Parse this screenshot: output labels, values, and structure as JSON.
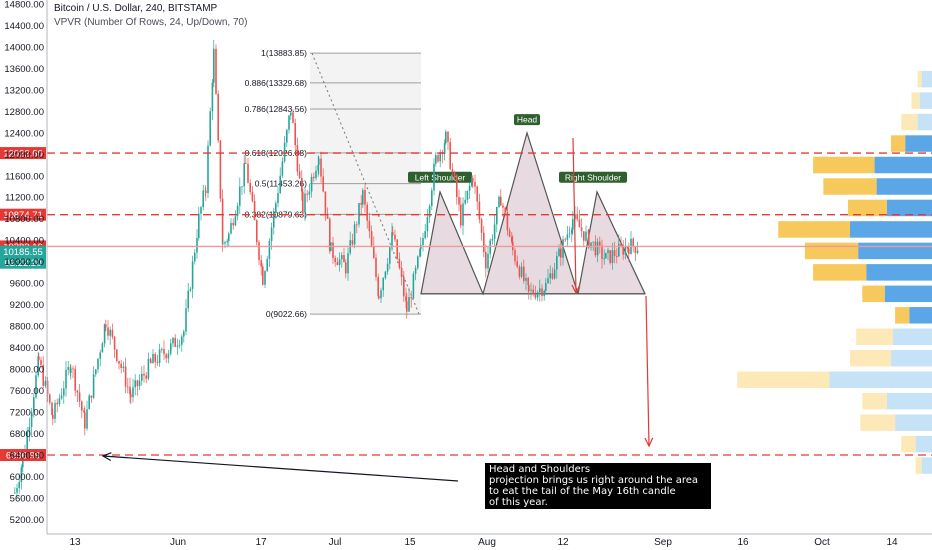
{
  "header": {
    "title": "Bitcoin / U.S. Dollar, 240, BITSTAMP",
    "subtitle": "VPVR (Number Of Rows, 24, Up/Down, 70)"
  },
  "chart_data": {
    "type": "candlestick",
    "ylim": [
      5000,
      14800
    ],
    "y_ticks": [
      "5200.00",
      "5600.00",
      "6000.00",
      "6400.00",
      "6800.00",
      "7200.00",
      "7600.00",
      "8000.00",
      "8400.00",
      "8800.00",
      "9200.00",
      "9600.00",
      "10000.00",
      "10400.00",
      "10800.00",
      "11200.00",
      "11600.00",
      "12000.00",
      "12400.00",
      "12800.00",
      "13200.00",
      "13600.00",
      "14000.00",
      "14400.00",
      "14800.00"
    ],
    "x_ticks": [
      "13",
      "Jun",
      "17",
      "Jul",
      "15",
      "Aug",
      "12",
      "Sep",
      "16",
      "Oct",
      "14"
    ],
    "price_path": [
      [
        5700,
        14
      ],
      [
        6300,
        22
      ],
      [
        8150,
        38
      ],
      [
        7100,
        52
      ],
      [
        8100,
        70
      ],
      [
        7000,
        84
      ],
      [
        8900,
        105
      ],
      [
        7500,
        130
      ],
      [
        8100,
        150
      ],
      [
        8400,
        170
      ],
      [
        8700,
        183
      ],
      [
        10800,
        198
      ],
      [
        11400,
        205
      ],
      [
        13883.85,
        213
      ],
      [
        10300,
        222
      ],
      [
        10500,
        228
      ],
      [
        11800,
        245
      ],
      [
        9700,
        262
      ],
      [
        11100,
        275
      ],
      [
        12850,
        290
      ],
      [
        11000,
        302
      ],
      [
        12000,
        318
      ],
      [
        10200,
        330
      ],
      [
        9900,
        345
      ],
      [
        11250,
        362
      ],
      [
        9400,
        378
      ],
      [
        10500,
        392
      ],
      [
        9100,
        406
      ],
      [
        10200,
        420
      ],
      [
        11900,
        435
      ],
      [
        12300,
        445
      ],
      [
        10800,
        460
      ],
      [
        11600,
        472
      ],
      [
        10000,
        485
      ],
      [
        11200,
        500
      ],
      [
        10200,
        512
      ],
      [
        9400,
        528
      ],
      [
        9550,
        545
      ],
      [
        10200,
        560
      ],
      [
        10800,
        572
      ],
      [
        10400,
        588
      ],
      [
        10050,
        605
      ],
      [
        10200,
        618
      ],
      [
        10300,
        628
      ],
      [
        10283,
        638
      ]
    ],
    "fibonacci": [
      {
        "label": "1(13883.85)",
        "value": 13883.85
      },
      {
        "label": "0.886(13329.68)",
        "value": 13329.68
      },
      {
        "label": "0.786(12843.56)",
        "value": 12843.56
      },
      {
        "label": "0.618(12026.88)",
        "value": 12026.88
      },
      {
        "label": "0.5(11453.26)",
        "value": 11453.26
      },
      {
        "label": "0.382(10879.63)",
        "value": 10879.63
      },
      {
        "label": "0(9022.66)",
        "value": 9022.66
      }
    ],
    "price_labels": [
      {
        "text": "12022.60",
        "value": 12022.6,
        "color": "#e53935"
      },
      {
        "text": "10874.71",
        "value": 10874.71,
        "color": "#e53935"
      },
      {
        "text": "10283.16",
        "value": 10283.16,
        "color": "#e53935"
      },
      {
        "text": "10185.55",
        "value": 10185.55,
        "color": "#26a69a"
      },
      {
        "text": "02:22:20",
        "value": 9980,
        "color": "#26a69a"
      },
      {
        "text": "6396.99",
        "value": 6396.99,
        "color": "#e53935"
      }
    ],
    "pattern_labels": [
      "Left Shoulder",
      "Head",
      "Right Shoulder"
    ],
    "volume_profile": [
      {
        "price": 12200,
        "up": 0.07,
        "down": 0.13
      },
      {
        "price": 11800,
        "up": 0.3,
        "down": 0.28
      },
      {
        "price": 11400,
        "up": 0.26,
        "down": 0.27
      },
      {
        "price": 11000,
        "up": 0.19,
        "down": 0.22
      },
      {
        "price": 10600,
        "up": 0.35,
        "down": 0.4
      },
      {
        "price": 10200,
        "up": 0.26,
        "down": 0.36
      },
      {
        "price": 9800,
        "up": 0.26,
        "down": 0.32
      },
      {
        "price": 9400,
        "up": 0.11,
        "down": 0.23
      },
      {
        "price": 9000,
        "up": 0.07,
        "down": 0.11
      },
      {
        "price": 8600,
        "up": 0.18,
        "down": 0.19
      },
      {
        "price": 8200,
        "up": 0.2,
        "down": 0.2
      },
      {
        "price": 7800,
        "up": 0.45,
        "down": 0.5
      },
      {
        "price": 7400,
        "up": 0.12,
        "down": 0.22
      },
      {
        "price": 7000,
        "up": 0.17,
        "down": 0.18
      },
      {
        "price": 6600,
        "up": 0.07,
        "down": 0.08
      },
      {
        "price": 6200,
        "up": 0.03,
        "down": 0.05
      },
      {
        "price": 12600,
        "up": 0.08,
        "down": 0.07
      },
      {
        "price": 13000,
        "up": 0.04,
        "down": 0.06
      },
      {
        "price": 13400,
        "up": 0.02,
        "down": 0.05
      }
    ],
    "annotation": [
      "Head and Shoulders",
      "projection brings us right around the area",
      "to eat the tail of the May 16th candle",
      "of this year."
    ]
  }
}
